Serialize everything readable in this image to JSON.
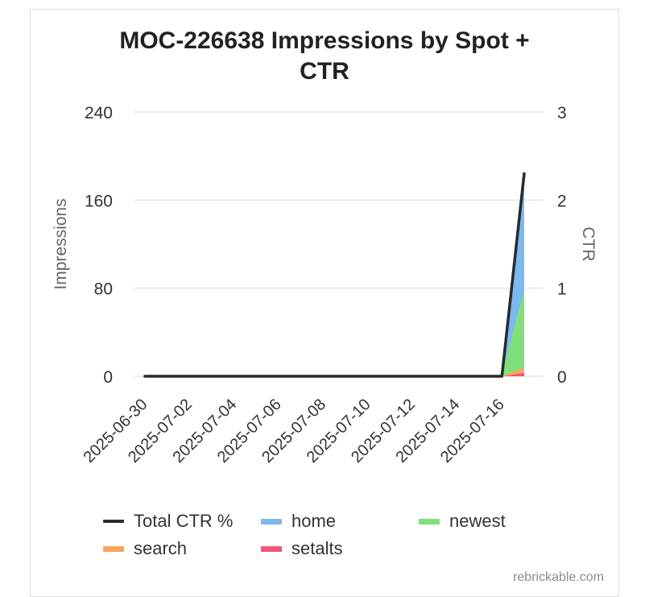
{
  "chart_data": {
    "type": "area",
    "title_lines": [
      "MOC-226638 Impressions by Spot +",
      "CTR"
    ],
    "ylabel": "Impressions",
    "y2label": "CTR",
    "ylim": [
      0,
      240
    ],
    "y2lim": [
      0,
      3
    ],
    "yticks": [
      "240",
      "160",
      "80",
      "0"
    ],
    "y2ticks": [
      "3",
      "2",
      "1",
      "0"
    ],
    "x": [
      "2025-06-30",
      "2025-07-01",
      "2025-07-02",
      "2025-07-03",
      "2025-07-04",
      "2025-07-05",
      "2025-07-06",
      "2025-07-07",
      "2025-07-08",
      "2025-07-09",
      "2025-07-10",
      "2025-07-11",
      "2025-07-12",
      "2025-07-13",
      "2025-07-14",
      "2025-07-15",
      "2025-07-16",
      "2025-07-17"
    ],
    "xticks": [
      "2025-06-30",
      "2025-07-02",
      "2025-07-04",
      "2025-07-06",
      "2025-07-08",
      "2025-07-10",
      "2025-07-12",
      "2025-07-14",
      "2025-07-16"
    ],
    "grid": true,
    "legend_placement": "bottom",
    "stacked": true,
    "series": [
      {
        "name": "setalts",
        "kind": "area",
        "color": "#f0557a",
        "values": [
          0,
          0,
          0,
          0,
          0,
          0,
          0,
          0,
          0,
          0,
          0,
          0,
          0,
          0,
          0,
          0,
          0,
          3
        ]
      },
      {
        "name": "search",
        "kind": "area",
        "color": "#f5a55a",
        "values": [
          0,
          0,
          0,
          0,
          0,
          0,
          0,
          0,
          0,
          0,
          0,
          0,
          0,
          0,
          0,
          0,
          0,
          5
        ]
      },
      {
        "name": "newest",
        "kind": "area",
        "color": "#7fe07a",
        "values": [
          0,
          0,
          0,
          0,
          0,
          0,
          0,
          0,
          0,
          0,
          0,
          0,
          0,
          0,
          0,
          0,
          0,
          70
        ]
      },
      {
        "name": "home",
        "kind": "area",
        "color": "#7db9ec",
        "values": [
          0,
          0,
          0,
          0,
          0,
          0,
          0,
          0,
          0,
          0,
          0,
          0,
          0,
          0,
          0,
          0,
          0,
          97
        ]
      },
      {
        "name": "Total CTR %",
        "kind": "line",
        "axis": "right",
        "color": "#2a2a2a",
        "values": [
          0,
          0,
          0,
          0,
          0,
          0,
          0,
          0,
          0,
          0,
          0,
          0,
          0,
          0,
          0,
          0,
          0,
          2.3
        ]
      }
    ],
    "legend": [
      {
        "name": "Total CTR %",
        "color": "#2a2a2a"
      },
      {
        "name": "home",
        "color": "#7db9ec"
      },
      {
        "name": "newest",
        "color": "#7fe07a"
      },
      {
        "name": "search",
        "color": "#f5a55a"
      },
      {
        "name": "setalts",
        "color": "#f0557a"
      }
    ]
  },
  "watermark": "rebrickable.com"
}
